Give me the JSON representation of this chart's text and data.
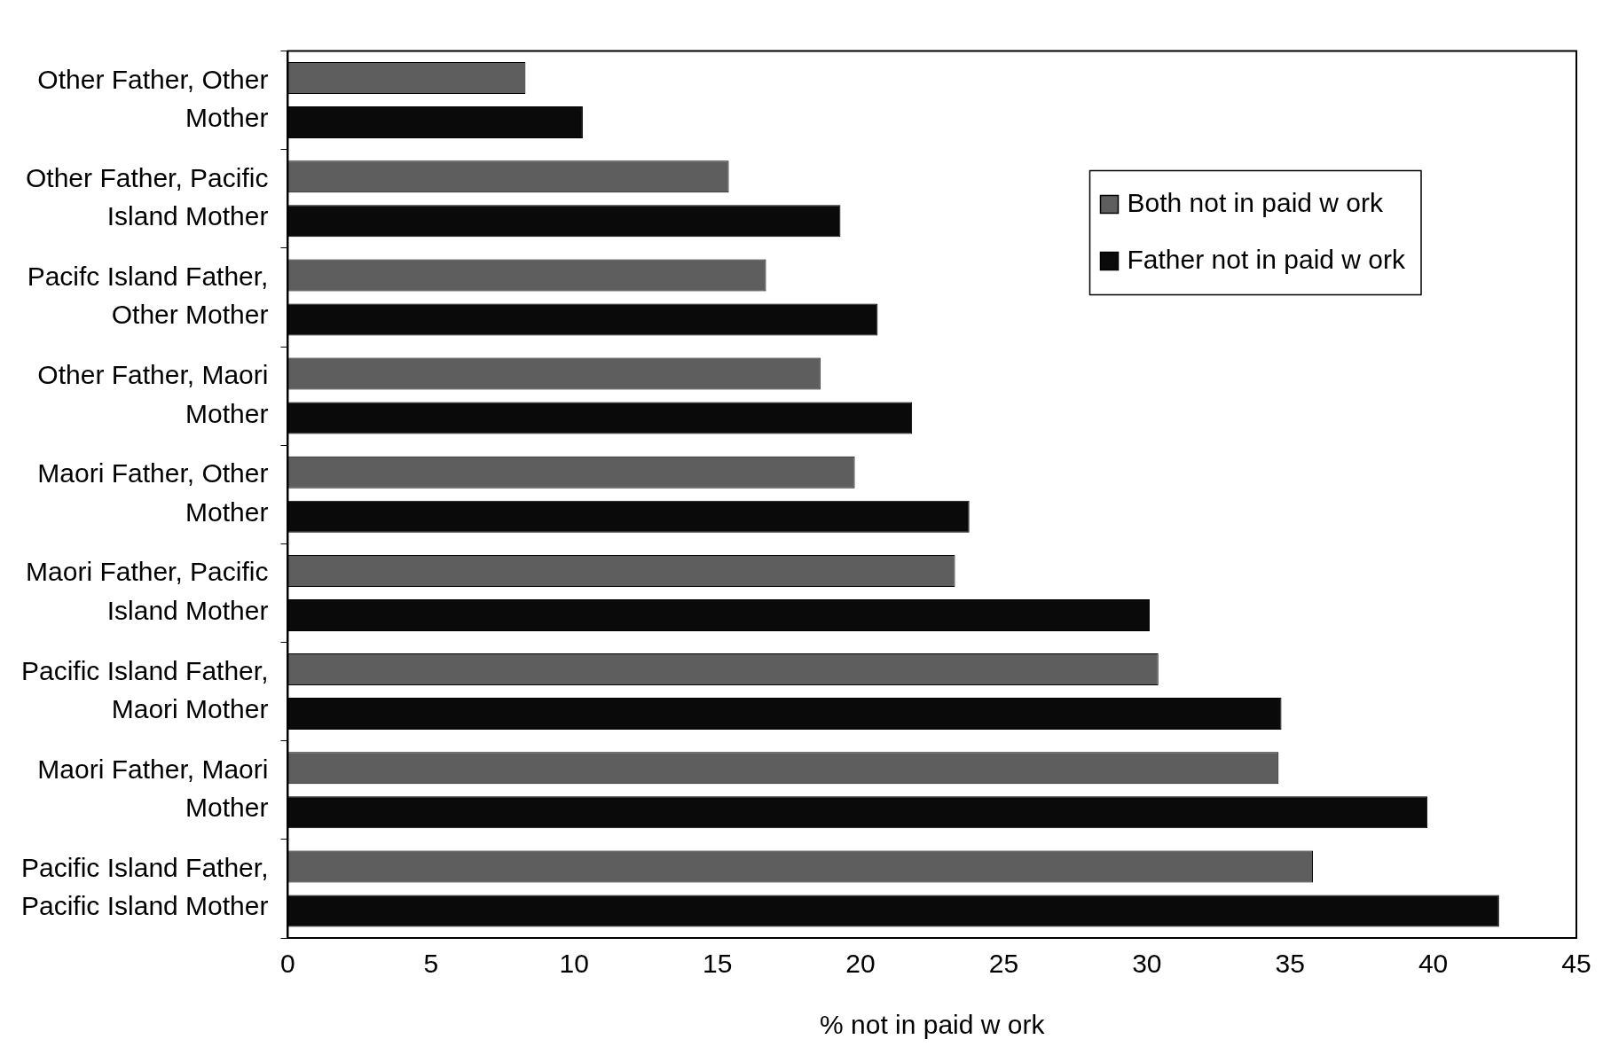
{
  "chart_data": {
    "type": "bar",
    "orientation": "horizontal",
    "xlabel": "% not in paid w ork",
    "categories": [
      "Other Father, Other Mother",
      "Other Father, Pacific Island Mother",
      "Pacifc Island Father, Other Mother",
      "Other Father, Maori Mother",
      "Maori Father, Other Mother",
      "Maori Father, Pacific Island Mother",
      "Pacific Island Father, Maori Mother",
      "Maori Father, Maori Mother",
      "Pacific Island Father, Pacific Island Mother"
    ],
    "series": [
      {
        "name": "Both not in paid w ork",
        "color": "#5e5e5e",
        "values": [
          8.3,
          15.4,
          16.7,
          18.6,
          19.8,
          23.3,
          30.4,
          34.6,
          35.8
        ]
      },
      {
        "name": "Father not in paid w ork",
        "color": "#0a0a0a",
        "values": [
          10.3,
          19.3,
          20.6,
          21.8,
          23.8,
          30.1,
          34.7,
          39.8,
          42.3
        ]
      }
    ],
    "xlim": [
      0,
      45
    ],
    "xticks": [
      0,
      5,
      10,
      15,
      20,
      25,
      30,
      35,
      40,
      45
    ],
    "grid": false,
    "legend": "top right"
  }
}
